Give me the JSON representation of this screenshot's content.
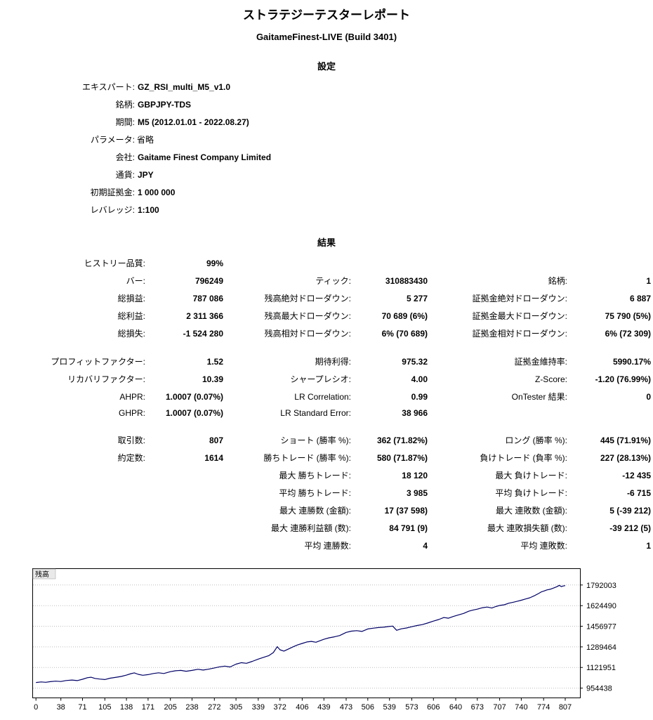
{
  "report": {
    "title": "ストラテジーテスターレポート",
    "subtitle": "GaitameFinest-LIVE (Build 3401)"
  },
  "settings": {
    "heading": "設定",
    "rows": [
      {
        "label": "エキスパート:",
        "value": "GZ_RSI_multi_M5_v1.0",
        "bold": true
      },
      {
        "label": "銘柄:",
        "value": "GBPJPY-TDS",
        "bold": true
      },
      {
        "label": "期間:",
        "value": "M5 (2012.01.01 - 2022.08.27)",
        "bold": true
      },
      {
        "label": "パラメータ:",
        "value": "省略",
        "bold": false
      },
      {
        "label": "会社:",
        "value": "Gaitame Finest Company Limited",
        "bold": true
      },
      {
        "label": "通貨:",
        "value": "JPY",
        "bold": true
      },
      {
        "label": "初期証拠金:",
        "value": "1 000 000",
        "bold": true
      },
      {
        "label": "レバレッジ:",
        "value": "1:100",
        "bold": true
      }
    ]
  },
  "results": {
    "heading": "結果",
    "rows": [
      {
        "cells": [
          {
            "l": "ヒストリー品質:",
            "v": "99%"
          },
          null,
          null
        ]
      },
      {
        "cells": [
          {
            "l": "バー:",
            "v": "796249"
          },
          {
            "l": "ティック:",
            "v": "310883430"
          },
          {
            "l": "銘柄:",
            "v": "1"
          }
        ]
      },
      {
        "cells": [
          {
            "l": "総損益:",
            "v": "787 086"
          },
          {
            "l": "残高絶対ドローダウン:",
            "v": "5 277"
          },
          {
            "l": "証拠金絶対ドローダウン:",
            "v": "6 887"
          }
        ]
      },
      {
        "cells": [
          {
            "l": "総利益:",
            "v": "2 311 366"
          },
          {
            "l": "残高最大ドローダウン:",
            "v": "70 689 (6%)"
          },
          {
            "l": "証拠金最大ドローダウン:",
            "v": "75 790 (5%)"
          }
        ]
      },
      {
        "cells": [
          {
            "l": "総損失:",
            "v": "-1 524 280"
          },
          {
            "l": "残高相対ドローダウン:",
            "v": "6% (70 689)"
          },
          {
            "l": "証拠金相対ドローダウン:",
            "v": "6% (72 309)"
          }
        ]
      },
      {
        "spacer": true
      },
      {
        "cells": [
          {
            "l": "プロフィットファクター:",
            "v": "1.52"
          },
          {
            "l": "期待利得:",
            "v": "975.32"
          },
          {
            "l": "証拠金維持率:",
            "v": "5990.17%"
          }
        ]
      },
      {
        "cells": [
          {
            "l": "リカバリファクター:",
            "v": "10.39"
          },
          {
            "l": "シャープレシオ:",
            "v": "4.00"
          },
          {
            "l": "Z-Score:",
            "v": "-1.20 (76.99%)"
          }
        ]
      },
      {
        "cells": [
          {
            "l": "AHPR:",
            "v": "1.0007 (0.07%)"
          },
          {
            "l": "LR Correlation:",
            "v": "0.99"
          },
          {
            "l": "OnTester 結果:",
            "v": "0"
          }
        ]
      },
      {
        "cells": [
          {
            "l": "GHPR:",
            "v": "1.0007 (0.07%)"
          },
          {
            "l": "LR Standard Error:",
            "v": "38 966"
          },
          null
        ]
      },
      {
        "spacer": true
      },
      {
        "cells": [
          {
            "l": "取引数:",
            "v": "807"
          },
          {
            "l": "ショート (勝率 %):",
            "v": "362 (71.82%)"
          },
          {
            "l": "ロング (勝率 %):",
            "v": "445 (71.91%)"
          }
        ]
      },
      {
        "cells": [
          {
            "l": "約定数:",
            "v": "1614"
          },
          {
            "l": "勝ちトレード (勝率 %):",
            "v": "580 (71.87%)"
          },
          {
            "l": "負けトレード (負率 %):",
            "v": "227 (28.13%)"
          }
        ]
      },
      {
        "cells": [
          null,
          {
            "l": "最大 勝ちトレード:",
            "v": "18 120"
          },
          {
            "l": "最大 負けトレード:",
            "v": "-12 435"
          }
        ]
      },
      {
        "cells": [
          null,
          {
            "l": "平均 勝ちトレード:",
            "v": "3 985"
          },
          {
            "l": "平均 負けトレード:",
            "v": "-6 715"
          }
        ]
      },
      {
        "cells": [
          null,
          {
            "l": "最大 連勝数 (金額):",
            "v": "17 (37 598)"
          },
          {
            "l": "最大 連敗数 (金額):",
            "v": "5 (-39 212)"
          }
        ]
      },
      {
        "cells": [
          null,
          {
            "l": "最大 連勝利益額 (数):",
            "v": "84 791 (9)"
          },
          {
            "l": "最大 連敗損失額 (数):",
            "v": "-39 212 (5)"
          }
        ]
      },
      {
        "cells": [
          null,
          {
            "l": "平均 連勝数:",
            "v": "4"
          },
          {
            "l": "平均 連敗数:",
            "v": "1"
          }
        ]
      }
    ]
  },
  "chart_data": {
    "type": "line",
    "title": "残高",
    "xlabel": "",
    "ylabel": "",
    "legend_label": "残高",
    "line_color": "#000066",
    "grid": "horizontal-dotted",
    "x_ticks": [
      0,
      38,
      71,
      105,
      138,
      171,
      205,
      238,
      272,
      305,
      339,
      372,
      406,
      439,
      473,
      506,
      539,
      573,
      606,
      640,
      673,
      707,
      740,
      774,
      807
    ],
    "y_ticks": [
      954438,
      1121951,
      1289464,
      1456977,
      1624490,
      1792003
    ],
    "xlim": [
      -5,
      830
    ],
    "ylim": [
      875000,
      1925000
    ],
    "points": [
      [
        0,
        1000000
      ],
      [
        8,
        1004500
      ],
      [
        15,
        1001500
      ],
      [
        22,
        1007000
      ],
      [
        30,
        1011000
      ],
      [
        38,
        1008000
      ],
      [
        46,
        1016000
      ],
      [
        55,
        1020000
      ],
      [
        63,
        1015500
      ],
      [
        71,
        1026000
      ],
      [
        78,
        1038000
      ],
      [
        84,
        1043000
      ],
      [
        90,
        1033000
      ],
      [
        97,
        1028000
      ],
      [
        105,
        1024000
      ],
      [
        113,
        1035000
      ],
      [
        121,
        1041000
      ],
      [
        130,
        1049000
      ],
      [
        138,
        1060000
      ],
      [
        145,
        1072000
      ],
      [
        150,
        1078000
      ],
      [
        156,
        1066000
      ],
      [
        163,
        1059000
      ],
      [
        171,
        1064000
      ],
      [
        179,
        1073000
      ],
      [
        187,
        1079000
      ],
      [
        195,
        1073000
      ],
      [
        205,
        1088000
      ],
      [
        213,
        1095000
      ],
      [
        221,
        1098000
      ],
      [
        229,
        1091000
      ],
      [
        238,
        1098000
      ],
      [
        247,
        1107000
      ],
      [
        255,
        1101000
      ],
      [
        263,
        1108000
      ],
      [
        272,
        1118000
      ],
      [
        280,
        1127000
      ],
      [
        288,
        1133000
      ],
      [
        296,
        1126000
      ],
      [
        305,
        1149000
      ],
      [
        313,
        1161000
      ],
      [
        321,
        1156000
      ],
      [
        330,
        1172000
      ],
      [
        339,
        1190000
      ],
      [
        347,
        1204000
      ],
      [
        355,
        1218000
      ],
      [
        362,
        1243000
      ],
      [
        368,
        1291000
      ],
      [
        372,
        1266000
      ],
      [
        378,
        1255000
      ],
      [
        385,
        1272000
      ],
      [
        392,
        1290000
      ],
      [
        399,
        1305000
      ],
      [
        406,
        1317000
      ],
      [
        413,
        1329000
      ],
      [
        420,
        1334000
      ],
      [
        427,
        1327000
      ],
      [
        433,
        1339000
      ],
      [
        439,
        1351000
      ],
      [
        447,
        1363000
      ],
      [
        455,
        1371000
      ],
      [
        463,
        1381000
      ],
      [
        473,
        1407000
      ],
      [
        481,
        1417000
      ],
      [
        489,
        1421000
      ],
      [
        497,
        1415000
      ],
      [
        506,
        1435000
      ],
      [
        514,
        1441000
      ],
      [
        522,
        1446000
      ],
      [
        530,
        1449000
      ],
      [
        538,
        1455000
      ],
      [
        544,
        1458000
      ],
      [
        550,
        1424000
      ],
      [
        557,
        1436000
      ],
      [
        565,
        1443000
      ],
      [
        573,
        1453000
      ],
      [
        581,
        1463000
      ],
      [
        589,
        1470000
      ],
      [
        597,
        1483000
      ],
      [
        606,
        1499000
      ],
      [
        614,
        1511000
      ],
      [
        622,
        1528000
      ],
      [
        629,
        1522000
      ],
      [
        636,
        1536000
      ],
      [
        644,
        1549000
      ],
      [
        652,
        1561000
      ],
      [
        660,
        1579000
      ],
      [
        666,
        1588000
      ],
      [
        673,
        1596000
      ],
      [
        681,
        1608000
      ],
      [
        688,
        1613000
      ],
      [
        695,
        1605000
      ],
      [
        701,
        1617000
      ],
      [
        707,
        1626000
      ],
      [
        714,
        1631000
      ],
      [
        721,
        1644000
      ],
      [
        728,
        1652000
      ],
      [
        734,
        1660000
      ],
      [
        740,
        1668000
      ],
      [
        747,
        1679000
      ],
      [
        753,
        1688000
      ],
      [
        760,
        1705000
      ],
      [
        766,
        1722000
      ],
      [
        771,
        1737000
      ],
      [
        774,
        1742000
      ],
      [
        779,
        1752000
      ],
      [
        784,
        1757000
      ],
      [
        789,
        1767000
      ],
      [
        794,
        1778000
      ],
      [
        798,
        1789000
      ],
      [
        801,
        1779000
      ],
      [
        804,
        1784000
      ],
      [
        807,
        1787086
      ]
    ]
  }
}
